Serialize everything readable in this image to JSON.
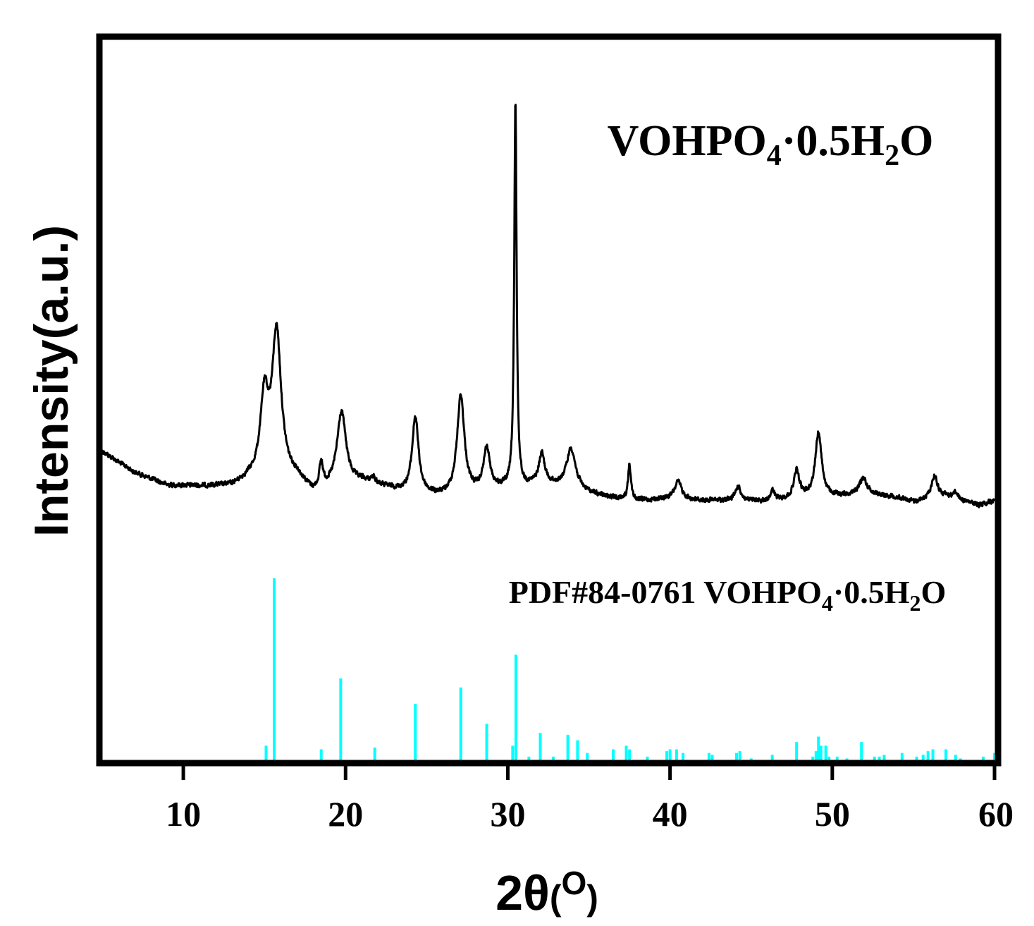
{
  "chart_data": {
    "type": "line",
    "xlabel_main": "2θ",
    "xlabel_unit_open": "(",
    "xlabel_unit_sym": "O",
    "xlabel_unit_close": ")",
    "ylabel": "Intensity(a.u.)",
    "xlim": [
      5,
      60
    ],
    "xticks": [
      10,
      20,
      30,
      40,
      50,
      60
    ],
    "grid": false,
    "annotations": {
      "sample": {
        "main": "VOHPO",
        "sub1": "4",
        "mid": "·0.5H",
        "sub2": "2",
        "end": "O"
      },
      "reference": {
        "main": "PDF#84-0761 VOHPO",
        "sub1": "4",
        "mid": "·0.5H",
        "sub2": "2",
        "end": "O"
      }
    },
    "series": [
      {
        "name": "VOHPO4·0.5H2O",
        "color": "#000000",
        "baseline": [
          [
            5,
            640
          ],
          [
            7,
            670
          ],
          [
            9,
            688
          ],
          [
            11,
            690
          ],
          [
            13,
            690
          ],
          [
            14,
            682
          ],
          [
            17,
            680
          ],
          [
            18,
            700
          ],
          [
            20,
            690
          ],
          [
            21,
            685
          ],
          [
            23,
            695
          ],
          [
            24,
            700
          ],
          [
            26,
            705
          ],
          [
            28,
            700
          ],
          [
            29,
            695
          ],
          [
            31,
            692
          ],
          [
            32,
            685
          ],
          [
            33,
            690
          ],
          [
            35,
            700
          ],
          [
            36,
            705
          ],
          [
            38,
            710
          ],
          [
            40,
            708
          ],
          [
            42,
            710
          ],
          [
            44,
            710
          ],
          [
            46,
            712
          ],
          [
            48,
            706
          ],
          [
            50,
            705
          ],
          [
            52,
            700
          ],
          [
            54,
            705
          ],
          [
            55,
            712
          ],
          [
            57,
            704
          ],
          [
            59,
            716
          ],
          [
            60,
            710
          ]
        ],
        "peaks": [
          {
            "x": 15.0,
            "h": 110,
            "w": 0.45
          },
          {
            "x": 15.75,
            "h": 205,
            "w": 0.5
          },
          {
            "x": 18.5,
            "h": 35,
            "w": 0.2
          },
          {
            "x": 19.75,
            "h": 105,
            "w": 0.5
          },
          {
            "x": 21.7,
            "h": 8,
            "w": 0.3
          },
          {
            "x": 24.3,
            "h": 108,
            "w": 0.35
          },
          {
            "x": 27.1,
            "h": 140,
            "w": 0.4
          },
          {
            "x": 28.7,
            "h": 58,
            "w": 0.35
          },
          {
            "x": 30.47,
            "h": 545,
            "w": 0.13
          },
          {
            "x": 32.1,
            "h": 40,
            "w": 0.3
          },
          {
            "x": 33.9,
            "h": 58,
            "w": 0.5
          },
          {
            "x": 37.5,
            "h": 50,
            "w": 0.15
          },
          {
            "x": 40.5,
            "h": 25,
            "w": 0.4
          },
          {
            "x": 44.2,
            "h": 20,
            "w": 0.3
          },
          {
            "x": 46.3,
            "h": 15,
            "w": 0.25
          },
          {
            "x": 47.8,
            "h": 38,
            "w": 0.3
          },
          {
            "x": 49.15,
            "h": 92,
            "w": 0.35
          },
          {
            "x": 51.9,
            "h": 22,
            "w": 0.4
          },
          {
            "x": 56.3,
            "h": 32,
            "w": 0.35
          },
          {
            "x": 57.6,
            "h": 10,
            "w": 0.25
          }
        ]
      },
      {
        "name": "PDF#84-0761 VOHPO4·0.5H2O",
        "color": "#00FFFF",
        "sticks": [
          [
            15.1,
            8
          ],
          [
            15.6,
            100
          ],
          [
            18.5,
            6
          ],
          [
            19.7,
            45
          ],
          [
            21.8,
            7
          ],
          [
            24.3,
            31
          ],
          [
            27.1,
            40
          ],
          [
            28.7,
            20
          ],
          [
            30.3,
            8
          ],
          [
            30.5,
            58
          ],
          [
            31.3,
            2
          ],
          [
            32.0,
            15
          ],
          [
            32.8,
            2
          ],
          [
            33.7,
            14
          ],
          [
            34.3,
            11
          ],
          [
            34.9,
            4
          ],
          [
            36.5,
            6
          ],
          [
            37.3,
            8
          ],
          [
            37.5,
            6
          ],
          [
            38.6,
            2
          ],
          [
            39.8,
            5
          ],
          [
            40.0,
            6
          ],
          [
            40.4,
            6
          ],
          [
            40.8,
            4
          ],
          [
            42.4,
            4
          ],
          [
            42.6,
            3
          ],
          [
            44.1,
            4
          ],
          [
            44.3,
            5
          ],
          [
            45.0,
            1
          ],
          [
            46.3,
            3
          ],
          [
            47.8,
            10
          ],
          [
            48.8,
            2
          ],
          [
            49.0,
            5
          ],
          [
            49.15,
            13
          ],
          [
            49.3,
            8
          ],
          [
            49.6,
            8
          ],
          [
            49.8,
            2
          ],
          [
            50.3,
            2
          ],
          [
            50.9,
            1
          ],
          [
            51.8,
            10
          ],
          [
            52.6,
            2
          ],
          [
            52.9,
            2
          ],
          [
            53.2,
            3
          ],
          [
            54.3,
            4
          ],
          [
            55.2,
            2
          ],
          [
            55.6,
            3
          ],
          [
            55.9,
            5
          ],
          [
            56.2,
            6
          ],
          [
            57.0,
            6
          ],
          [
            57.6,
            3
          ],
          [
            57.9,
            1
          ],
          [
            59.3,
            2
          ],
          [
            60.0,
            4
          ]
        ]
      }
    ]
  }
}
